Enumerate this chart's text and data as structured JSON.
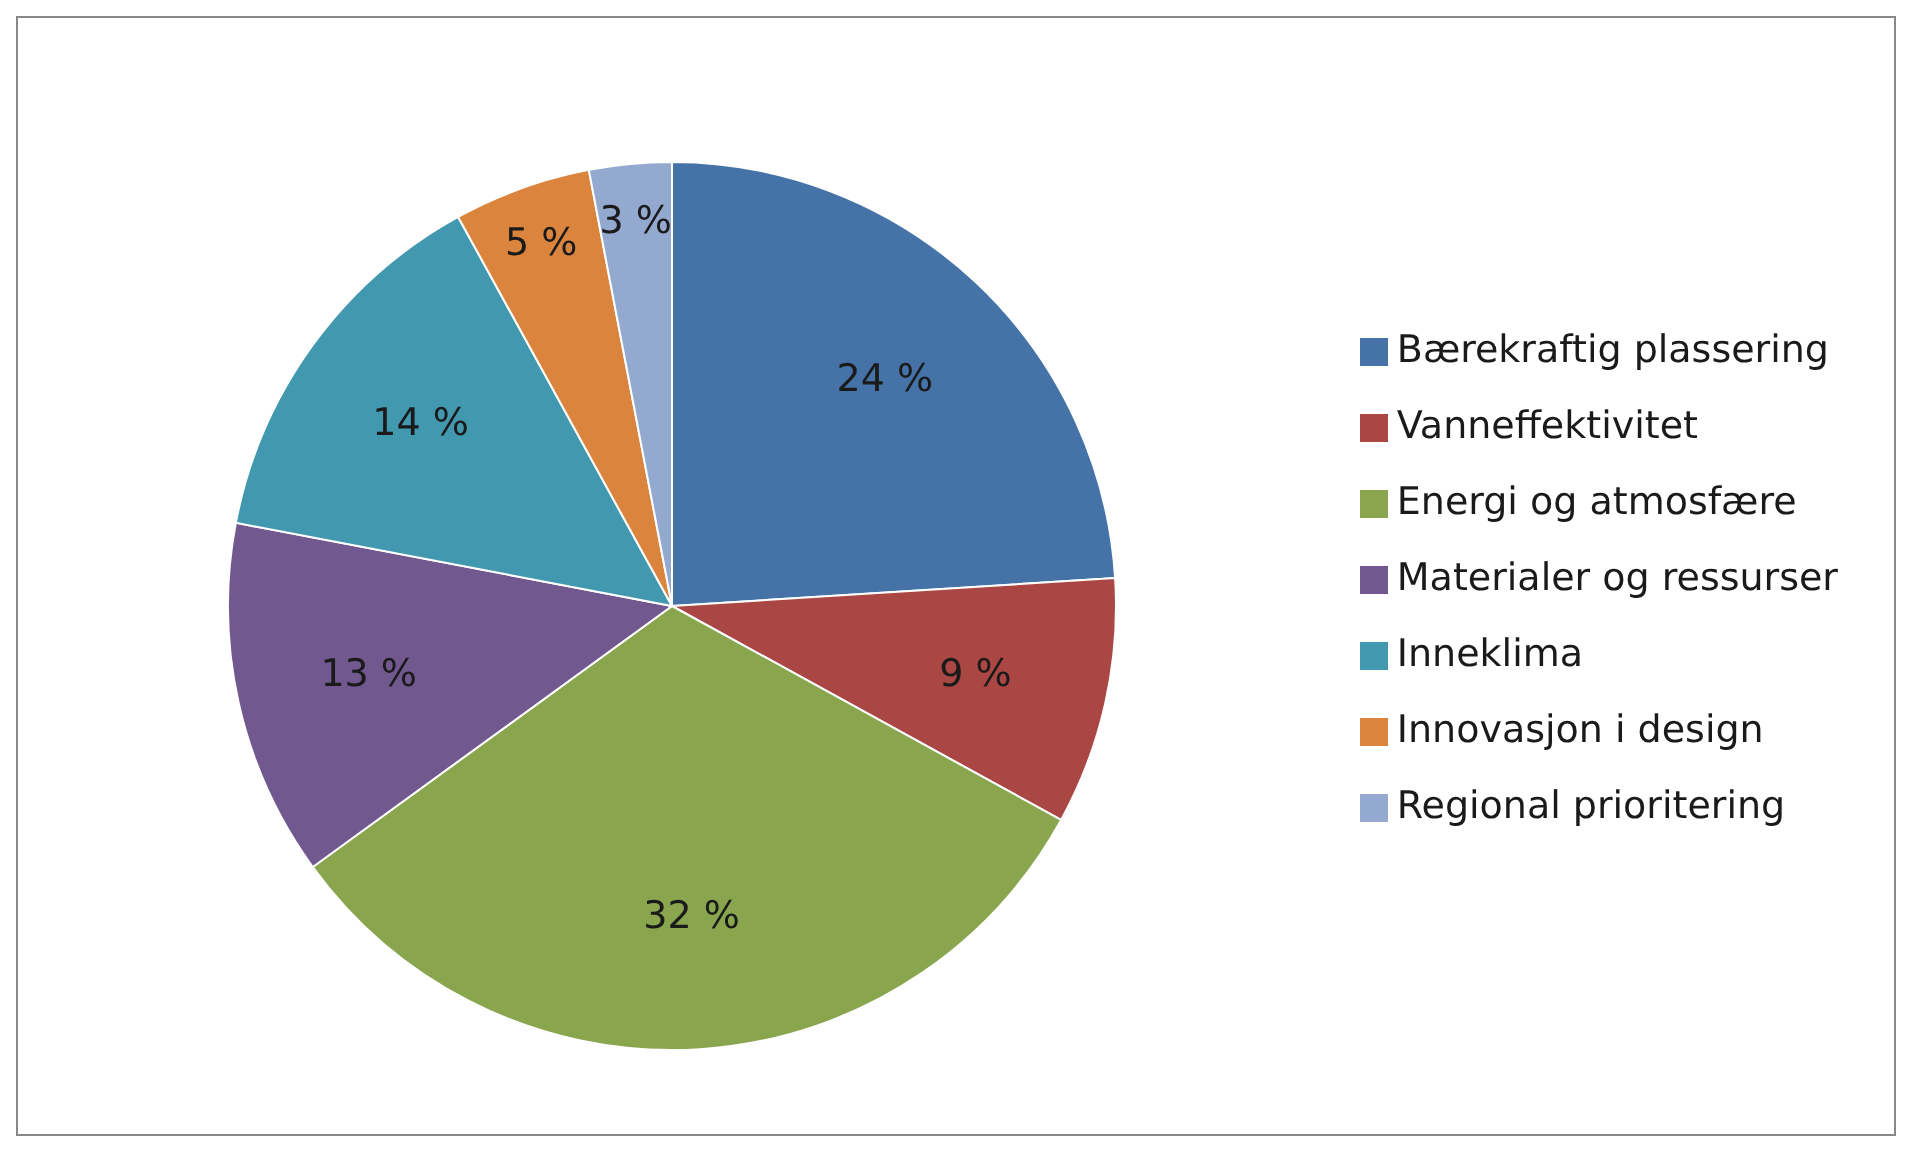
{
  "chart_data": {
    "type": "pie",
    "categories": [
      "Bærekraftig plassering",
      "Vanneffektivitet",
      "Energi og atmosfære",
      "Materialer og ressurser",
      "Inneklima",
      "Innovasjon i design",
      "Regional prioritering"
    ],
    "values": [
      24,
      9,
      32,
      13,
      14,
      5,
      3
    ],
    "value_labels": [
      "24 %",
      "9 %",
      "32 %",
      "13 %",
      "14 %",
      "5 %",
      "3 %"
    ],
    "colors": [
      "#4572a7",
      "#aa4643",
      "#89a54e",
      "#71588f",
      "#4198af",
      "#db843d",
      "#93a9cf"
    ],
    "legend": "right"
  }
}
